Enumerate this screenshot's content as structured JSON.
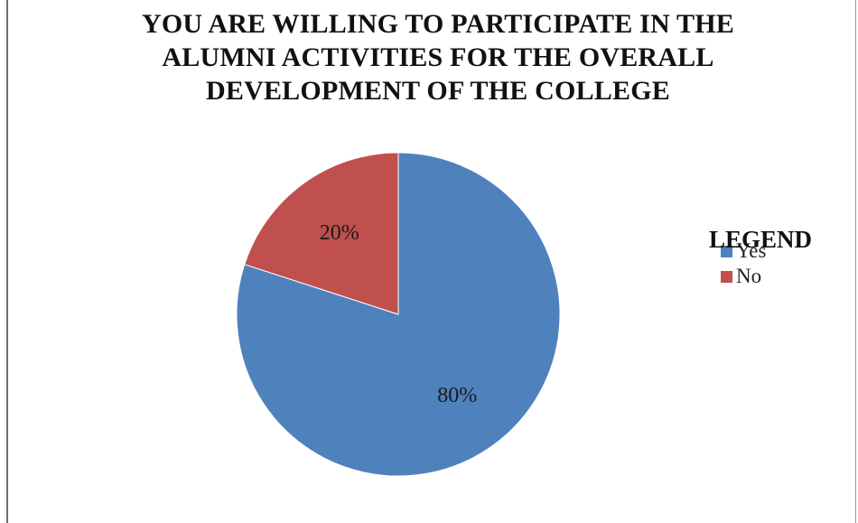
{
  "chart_data": {
    "type": "pie",
    "title_lines": [
      "YOU ARE WILLING TO PARTICIPATE IN THE",
      "ALUMNI ACTIVITIES FOR THE OVERALL",
      "DEVELOPMENT OF THE COLLEGE"
    ],
    "legend_title": "LEGEND",
    "legend_position": "right",
    "slices": [
      {
        "label": "Yes",
        "value": 80,
        "display": "80%",
        "color": "#4f81bd"
      },
      {
        "label": "No",
        "value": 20,
        "display": "20%",
        "color": "#c0504d"
      }
    ]
  }
}
